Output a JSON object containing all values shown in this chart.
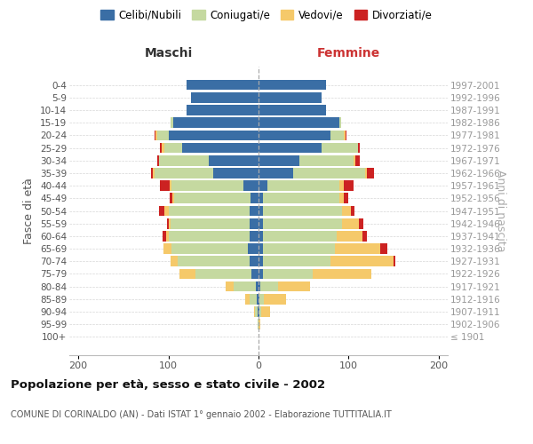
{
  "age_groups": [
    "100+",
    "95-99",
    "90-94",
    "85-89",
    "80-84",
    "75-79",
    "70-74",
    "65-69",
    "60-64",
    "55-59",
    "50-54",
    "45-49",
    "40-44",
    "35-39",
    "30-34",
    "25-29",
    "20-24",
    "15-19",
    "10-14",
    "5-9",
    "0-4"
  ],
  "birth_years": [
    "≤ 1901",
    "1902-1906",
    "1907-1911",
    "1912-1916",
    "1917-1921",
    "1922-1926",
    "1927-1931",
    "1932-1936",
    "1937-1941",
    "1942-1946",
    "1947-1951",
    "1952-1956",
    "1957-1961",
    "1962-1966",
    "1967-1971",
    "1972-1976",
    "1977-1981",
    "1982-1986",
    "1987-1991",
    "1992-1996",
    "1997-2001"
  ],
  "maschi": {
    "celibi": [
      0,
      0,
      1,
      2,
      3,
      8,
      10,
      12,
      10,
      10,
      10,
      9,
      17,
      50,
      55,
      85,
      100,
      95,
      80,
      75,
      80
    ],
    "coniugati": [
      0,
      1,
      3,
      8,
      25,
      62,
      80,
      85,
      90,
      88,
      90,
      85,
      80,
      65,
      55,
      20,
      12,
      3,
      0,
      0,
      0
    ],
    "vedovi": [
      0,
      0,
      1,
      5,
      8,
      18,
      8,
      8,
      3,
      2,
      5,
      2,
      2,
      2,
      0,
      2,
      2,
      0,
      0,
      0,
      0
    ],
    "divorziati": [
      0,
      0,
      0,
      0,
      0,
      0,
      0,
      0,
      3,
      2,
      5,
      3,
      10,
      2,
      2,
      2,
      1,
      0,
      0,
      0,
      0
    ]
  },
  "femmine": {
    "nubili": [
      0,
      0,
      1,
      1,
      2,
      5,
      5,
      5,
      5,
      5,
      5,
      5,
      10,
      38,
      45,
      70,
      80,
      90,
      75,
      70,
      75
    ],
    "coniugate": [
      0,
      0,
      2,
      5,
      20,
      55,
      75,
      80,
      82,
      88,
      88,
      85,
      80,
      80,
      60,
      40,
      15,
      2,
      0,
      0,
      0
    ],
    "vedove": [
      0,
      2,
      10,
      25,
      35,
      65,
      70,
      50,
      28,
      18,
      10,
      5,
      5,
      2,
      2,
      0,
      2,
      0,
      0,
      0,
      0
    ],
    "divorziate": [
      0,
      0,
      0,
      0,
      0,
      0,
      2,
      8,
      5,
      5,
      3,
      5,
      10,
      8,
      5,
      2,
      1,
      0,
      0,
      0,
      0
    ]
  },
  "colors": {
    "celibi": "#3a6ea5",
    "coniugati": "#c5d9a0",
    "vedovi": "#f5c96a",
    "divorziati": "#cc2222"
  },
  "xlim": 210,
  "title": "Popolazione per età, sesso e stato civile - 2002",
  "subtitle": "COMUNE DI CORINALDO (AN) - Dati ISTAT 1° gennaio 2002 - Elaborazione TUTTITALIA.IT",
  "ylabel_left": "Fasce di età",
  "ylabel_right": "Anni di nascita",
  "header_maschi": "Maschi",
  "header_femmine": "Femmine",
  "legend_labels": [
    "Celibi/Nubili",
    "Coniugati/e",
    "Vedovi/e",
    "Divorziati/e"
  ],
  "background_color": "#ffffff",
  "grid_color": "#cccccc"
}
